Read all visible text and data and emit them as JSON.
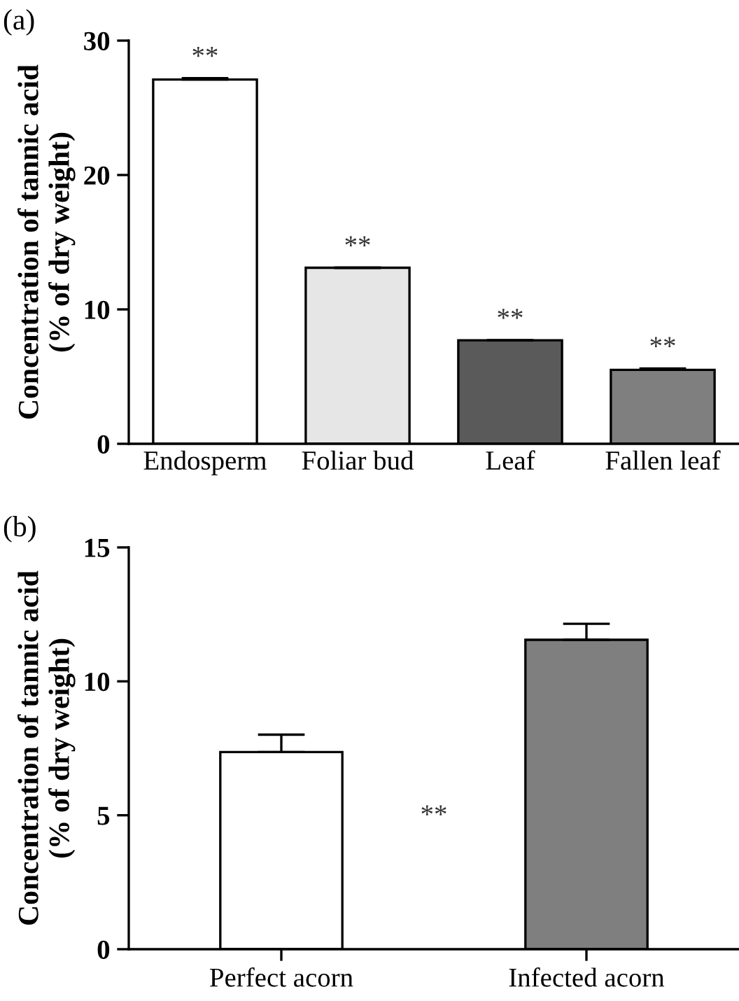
{
  "chart_data": [
    {
      "type": "bar",
      "title": "(a)",
      "ylabel": "Concentration of tannic acid\n(% of dry weight)",
      "categories": [
        "Endosperm",
        "Foliar bud",
        "Leaf",
        "Fallen leaf"
      ],
      "values": [
        27.1,
        13.1,
        7.7,
        5.5
      ],
      "errors": [
        0.1,
        null,
        null,
        0.1
      ],
      "colors": [
        "#ffffff",
        "#e6e6e6",
        "#5a5a5a",
        "#7f7f7f"
      ],
      "ylim": [
        0,
        30
      ],
      "yticks": [
        0,
        10,
        20,
        30
      ],
      "grid": false,
      "annotations": [
        {
          "text": "**",
          "x": "Endosperm",
          "y": 27.2
        },
        {
          "text": "**",
          "x": "Foliar bud",
          "y": 13.1
        },
        {
          "text": "**",
          "x": "Leaf",
          "y": 7.7
        },
        {
          "text": "**",
          "x": "Fallen leaf",
          "y": 5.6
        }
      ]
    },
    {
      "type": "bar",
      "title": "(b)",
      "ylabel": "Concentration of tannic acid\n(% of dry weight)",
      "categories": [
        "Perfect acorn",
        "Infected acorn"
      ],
      "values": [
        7.36,
        11.55
      ],
      "errors": [
        0.65,
        0.6
      ],
      "colors": [
        "#ffffff",
        "#7f7f7f"
      ],
      "ylim": [
        0,
        15
      ],
      "yticks": [
        0,
        5,
        10,
        15
      ],
      "grid": false,
      "annotations": [
        "**"
      ]
    }
  ]
}
